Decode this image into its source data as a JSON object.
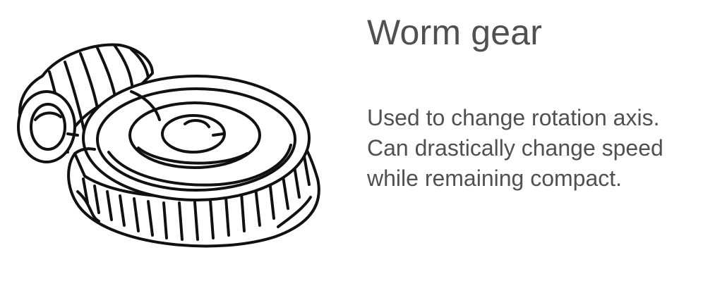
{
  "card": {
    "title": "Worm gear",
    "description_lines": [
      "Used to change rotation axis.",
      "Can drastically change speed",
      "while remaining compact."
    ],
    "illustration_icon": "worm-gear-icon"
  },
  "colors": {
    "background": "#ffffff",
    "text": "#505050",
    "line_art": "#111111"
  }
}
